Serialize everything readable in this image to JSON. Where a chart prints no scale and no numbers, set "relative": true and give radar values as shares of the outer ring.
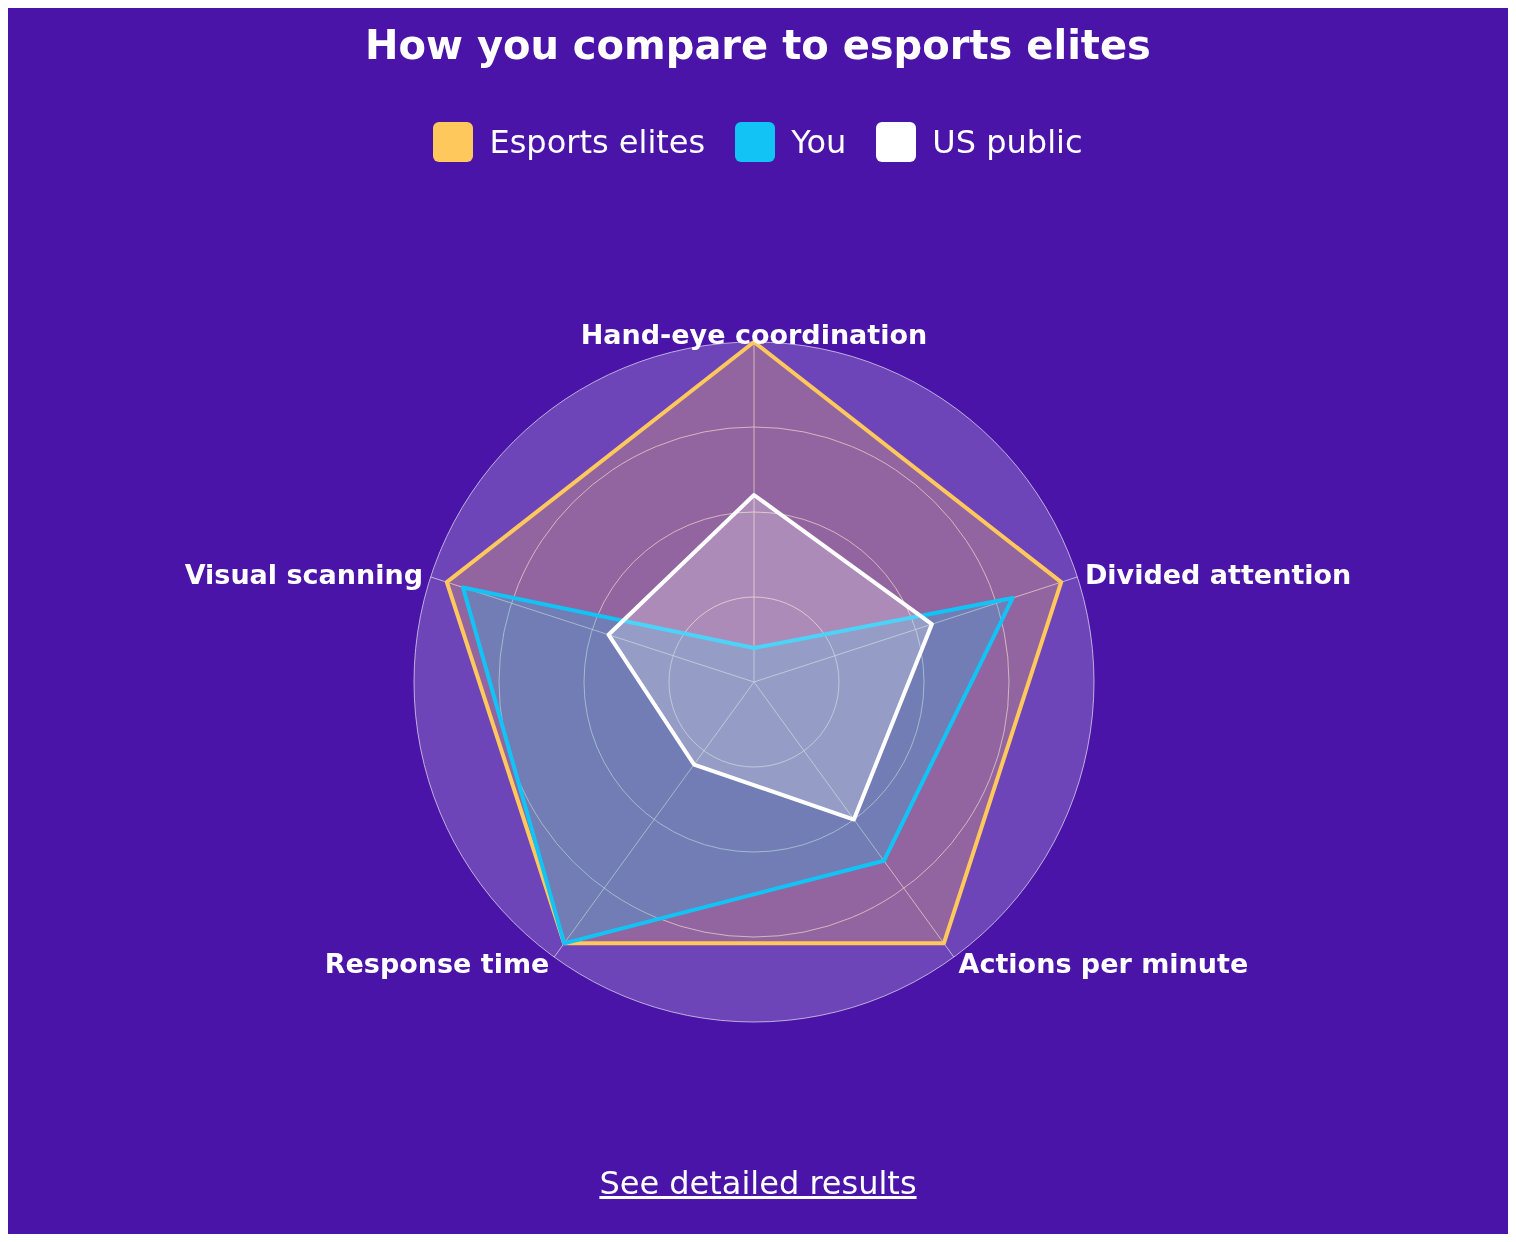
{
  "chart_data": {
    "type": "radar",
    "title": "How you compare to esports elites",
    "relative": true,
    "legend": "top",
    "categories": [
      "Hand-eye coordination",
      "Divided attention",
      "Actions per minute",
      "Response time",
      "Visual scanning"
    ],
    "series": [
      {
        "name": "Esports elites",
        "color": "#ffc85c",
        "values": [
          1,
          0.95,
          0.95,
          0.95,
          0.95
        ]
      },
      {
        "name": "You",
        "color": "#12c4f5",
        "values": [
          0.1,
          0.8,
          0.65,
          0.95,
          0.9
        ]
      },
      {
        "name": "US public",
        "color": "#ffffff",
        "values": [
          0.55,
          0.55,
          0.5,
          0.3,
          0.45
        ]
      }
    ],
    "annotations": [
      "See detailed results"
    ]
  }
}
